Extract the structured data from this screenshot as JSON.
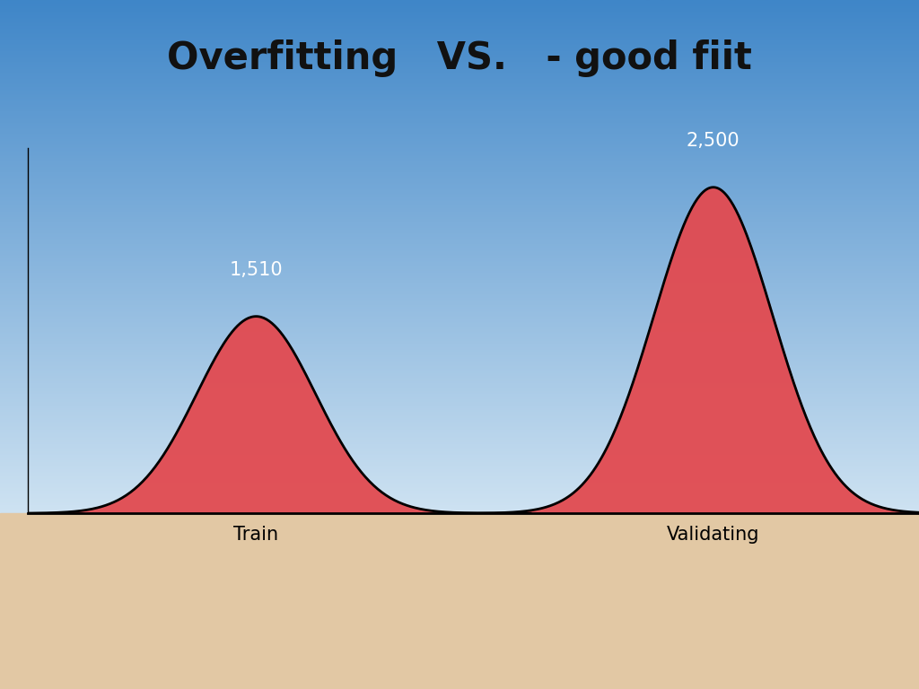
{
  "chart_data": {
    "type": "area",
    "title": "Overfitting   VS.   - good fiit",
    "categories": [
      "Train",
      "Validating"
    ],
    "values": [
      1510,
      2500
    ],
    "value_labels": [
      "1,510",
      "2,500"
    ],
    "data_labels": true,
    "color": "#e24a50",
    "ylim": [
      0,
      2800
    ],
    "yticks": [],
    "tick_labels": "x",
    "grid": false
  }
}
